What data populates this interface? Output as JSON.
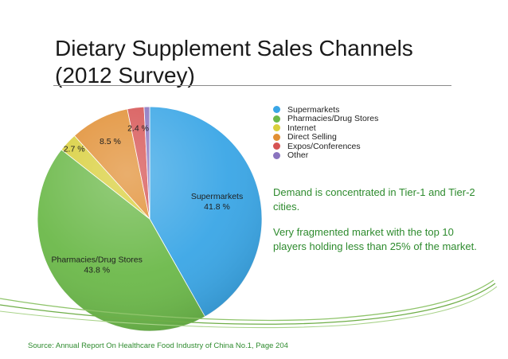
{
  "title": {
    "line1": "Dietary Supplement Sales Channels",
    "line2": "(2012 Survey)"
  },
  "chart_data": {
    "type": "pie",
    "categories": [
      "Supermarkets",
      "Pharmacies/Drug Stores",
      "Internet",
      "Direct Selling",
      "Expos/Conferences",
      "Other"
    ],
    "values": [
      41.8,
      43.8,
      2.7,
      8.5,
      2.4,
      0.8
    ],
    "slice_labels": [
      {
        "name": "Supermarkets",
        "value": "41.8 %"
      },
      {
        "name": "Pharmacies/Drug Stores",
        "value": "43.8 %"
      },
      {
        "name": "",
        "value": "2.7 %"
      },
      {
        "name": "",
        "value": "8.5 %"
      },
      {
        "name": "",
        "value": "2.4 %"
      },
      {
        "name": "",
        "value": ""
      }
    ],
    "colors": [
      "#3aa6e6",
      "#6cb94a",
      "#d9cf3c",
      "#e18f34",
      "#d65353",
      "#8a74bf"
    ],
    "legend_position": "right"
  },
  "notes": [
    "Demand is concentrated in Tier-1 and Tier-2 cities.",
    "Very fragmented market with the top 10 players holding less than 25% of the market."
  ],
  "source": "Source: Annual Report On Healthcare Food Industry of China  No.1, Page 204",
  "accent_color": "#2e8b2e"
}
